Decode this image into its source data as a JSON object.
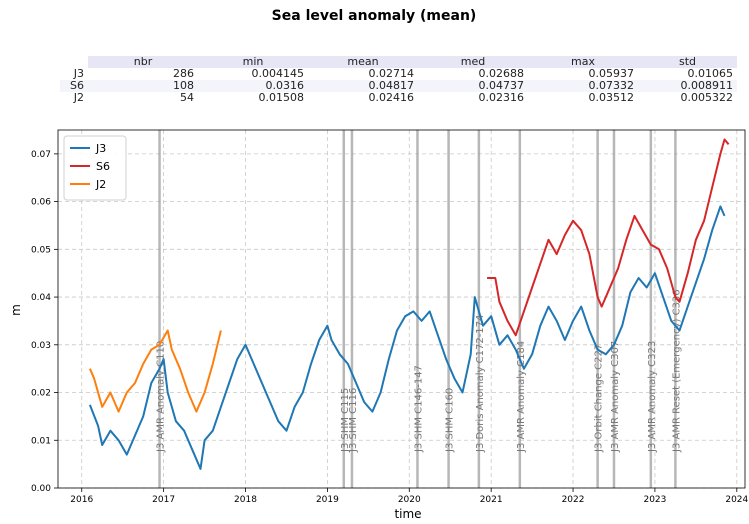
{
  "table": {
    "columns": [
      "nbr",
      "min",
      "mean",
      "med",
      "max",
      "std"
    ],
    "rows": [
      [
        "J3",
        "286",
        "0.004145",
        "0.02714",
        "0.02688",
        "0.05937",
        "0.01065"
      ],
      [
        "S6",
        "108",
        "0.0316",
        "0.04817",
        "0.04737",
        "0.07332",
        "0.008911"
      ],
      [
        "J2",
        "54",
        "0.01508",
        "0.02416",
        "0.02316",
        "0.03512",
        "0.005322"
      ]
    ]
  },
  "chart_data": {
    "type": "line",
    "title": "Sea level anomaly (mean)",
    "x_label": "time",
    "y_label": "m",
    "xlim": [
      2015.71,
      2024.1
    ],
    "xticks": [
      2016,
      2017,
      2018,
      2019,
      2020,
      2021,
      2022,
      2023,
      2024
    ],
    "ylim": [
      0,
      0.075
    ],
    "yticks": [
      {
        "value": 0,
        "label": "0.00"
      },
      {
        "value": 0.01,
        "label": "0.01"
      },
      {
        "value": 0.02,
        "label": "0.02"
      },
      {
        "value": 0.03,
        "label": "0.03"
      },
      {
        "value": 0.04,
        "label": "0.04"
      },
      {
        "value": 0.05,
        "label": "0.05"
      },
      {
        "value": 0.06,
        "label": "0.06"
      },
      {
        "value": 0.07,
        "label": "0.07"
      }
    ],
    "grid": true,
    "legend": "upper left",
    "series": [
      {
        "name": "J3",
        "color": "#1f77b4",
        "x": [
          2016.1,
          2016.2,
          2016.25,
          2016.35,
          2016.45,
          2016.55,
          2016.65,
          2016.75,
          2016.85,
          2016.95,
          2017.0,
          2017.05,
          2017.15,
          2017.25,
          2017.35,
          2017.45,
          2017.5,
          2017.6,
          2017.7,
          2017.8,
          2017.9,
          2018.0,
          2018.1,
          2018.2,
          2018.3,
          2018.4,
          2018.5,
          2018.6,
          2018.7,
          2018.8,
          2018.9,
          2019.0,
          2019.05,
          2019.15,
          2019.25,
          2019.35,
          2019.45,
          2019.55,
          2019.65,
          2019.75,
          2019.85,
          2019.95,
          2020.05,
          2020.15,
          2020.25,
          2020.35,
          2020.45,
          2020.55,
          2020.65,
          2020.75,
          2020.8,
          2020.9,
          2021.0,
          2021.1,
          2021.2,
          2021.3,
          2021.4,
          2021.5,
          2021.6,
          2021.7,
          2021.8,
          2021.9,
          2022.0,
          2022.1,
          2022.2,
          2022.3,
          2022.4,
          2022.5,
          2022.6,
          2022.7,
          2022.8,
          2022.9,
          2023.0,
          2023.1,
          2023.2,
          2023.3,
          2023.4,
          2023.5,
          2023.6,
          2023.7,
          2023.8,
          2023.85
        ],
        "values": [
          0.0174,
          0.013,
          0.009,
          0.012,
          0.01,
          0.007,
          0.011,
          0.015,
          0.022,
          0.025,
          0.027,
          0.02,
          0.014,
          0.012,
          0.008,
          0.004,
          0.01,
          0.012,
          0.017,
          0.022,
          0.027,
          0.03,
          0.026,
          0.022,
          0.018,
          0.014,
          0.012,
          0.017,
          0.02,
          0.026,
          0.031,
          0.034,
          0.031,
          0.028,
          0.026,
          0.022,
          0.018,
          0.016,
          0.02,
          0.027,
          0.033,
          0.036,
          0.037,
          0.035,
          0.037,
          0.032,
          0.027,
          0.023,
          0.02,
          0.028,
          0.04,
          0.034,
          0.036,
          0.03,
          0.032,
          0.029,
          0.025,
          0.028,
          0.034,
          0.038,
          0.035,
          0.031,
          0.035,
          0.038,
          0.033,
          0.029,
          0.028,
          0.03,
          0.034,
          0.041,
          0.044,
          0.042,
          0.045,
          0.04,
          0.035,
          0.033,
          0.038,
          0.043,
          0.048,
          0.054,
          0.059,
          0.057
        ]
      },
      {
        "name": "S6",
        "color": "#d62728",
        "x": [
          2020.95,
          2021.05,
          2021.1,
          2021.2,
          2021.3,
          2021.4,
          2021.5,
          2021.6,
          2021.7,
          2021.8,
          2021.9,
          2022.0,
          2022.1,
          2022.2,
          2022.3,
          2022.35,
          2022.45,
          2022.55,
          2022.65,
          2022.75,
          2022.85,
          2022.95,
          2023.05,
          2023.15,
          2023.25,
          2023.3,
          2023.4,
          2023.5,
          2023.6,
          2023.7,
          2023.8,
          2023.85,
          2023.9
        ],
        "values": [
          0.044,
          0.044,
          0.039,
          0.035,
          0.032,
          0.037,
          0.042,
          0.047,
          0.052,
          0.049,
          0.053,
          0.056,
          0.054,
          0.049,
          0.04,
          0.038,
          0.042,
          0.046,
          0.052,
          0.057,
          0.054,
          0.051,
          0.05,
          0.046,
          0.04,
          0.039,
          0.045,
          0.052,
          0.056,
          0.063,
          0.07,
          0.073,
          0.072
        ]
      },
      {
        "name": "J2",
        "color": "#ff7f0e",
        "x": [
          2016.1,
          2016.15,
          2016.25,
          2016.35,
          2016.45,
          2016.55,
          2016.65,
          2016.75,
          2016.85,
          2016.95,
          2017.05,
          2017.1,
          2017.2,
          2017.3,
          2017.4,
          2017.5,
          2017.6,
          2017.7
        ],
        "values": [
          0.025,
          0.023,
          0.017,
          0.02,
          0.016,
          0.02,
          0.022,
          0.026,
          0.029,
          0.03,
          0.033,
          0.029,
          0.025,
          0.02,
          0.016,
          0.02,
          0.026,
          0.033
        ]
      }
    ],
    "events": [
      {
        "x": 2016.95,
        "label": "J3 AMR Anomaly C110"
      },
      {
        "x": 2019.2,
        "label": "J3 SHM C115"
      },
      {
        "x": 2019.3,
        "label": "J3 SHM C116"
      },
      {
        "x": 2020.1,
        "label": "J3 SHM C146-147"
      },
      {
        "x": 2020.48,
        "label": "J3 SHM C160"
      },
      {
        "x": 2020.85,
        "label": "J3 Doris Anomaly C172-174"
      },
      {
        "x": 2021.35,
        "label": "J3 AMR Anomaly C184"
      },
      {
        "x": 2022.3,
        "label": "J3 Orbit Change C227"
      },
      {
        "x": 2022.5,
        "label": "J3 AMR Anomaly C307"
      },
      {
        "x": 2022.95,
        "label": "J3 AMR Anomaly C323"
      },
      {
        "x": 2023.25,
        "label": "J3 AMR Reset (Emergency) C336"
      }
    ]
  }
}
